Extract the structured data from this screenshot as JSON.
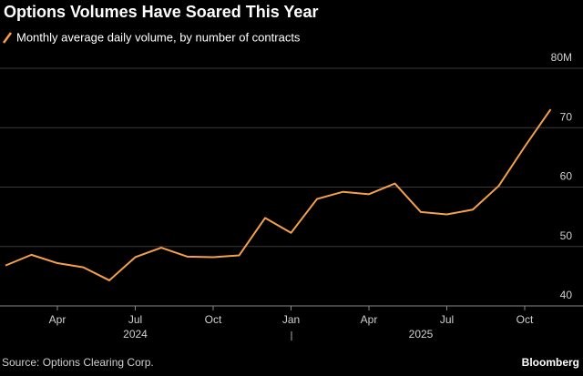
{
  "chart_data": {
    "type": "line",
    "title": "Options Volumes Have Soared This Year",
    "categories": [
      null,
      null,
      "Apr",
      null,
      null,
      "Jul",
      null,
      null,
      "Oct",
      null,
      null,
      "Jan",
      null,
      null,
      "Apr",
      null,
      null,
      "Jul",
      null,
      null,
      "Oct",
      null
    ],
    "years": [
      "2024",
      "2025"
    ],
    "series": [
      {
        "name": "Monthly average daily volume, by number of contracts",
        "color": "#f5a04a",
        "values": [
          46.8,
          48.6,
          47.2,
          46.5,
          44.3,
          48.2,
          49.8,
          48.3,
          48.2,
          48.5,
          54.8,
          52.3,
          58.0,
          59.2,
          58.8,
          60.6,
          55.8,
          55.4,
          56.2,
          60.2,
          66.8,
          73.1
        ]
      }
    ],
    "ylim": [
      40,
      80
    ],
    "yticks": [
      40,
      50,
      60,
      70,
      {
        "value": 80,
        "label": "80M"
      }
    ],
    "grid": true,
    "source": "Source: Options Clearing Corp.",
    "brand": "Bloomberg"
  }
}
